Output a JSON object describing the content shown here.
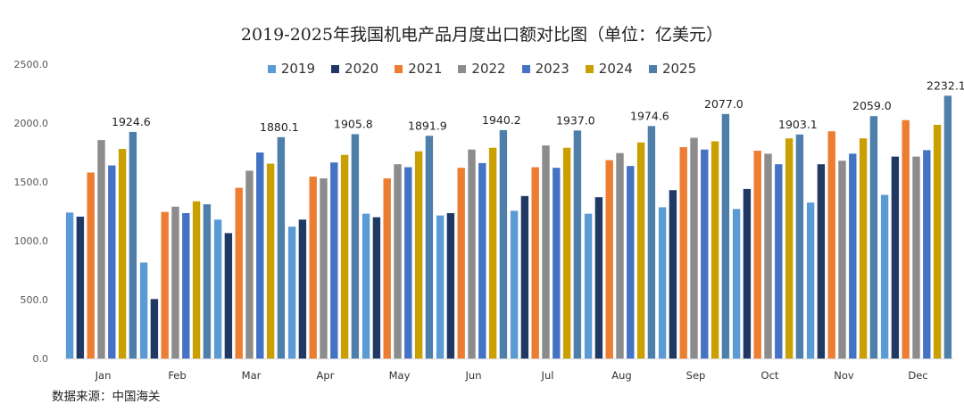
{
  "chart_data": {
    "type": "bar",
    "title": "2019-2025年我国机电产品月度出口额对比图（单位：亿美元）",
    "xlabel": "",
    "ylabel": "",
    "categories": [
      "Jan",
      "Feb",
      "Mar",
      "Apr",
      "May",
      "Jun",
      "Jul",
      "Aug",
      "Sep",
      "Oct",
      "Nov",
      "Dec"
    ],
    "ylim": [
      0,
      2500
    ],
    "yticks": [
      "0.0",
      "500.0",
      "1000.0",
      "1500.0",
      "2000.0",
      "2500.0"
    ],
    "grid": false,
    "legend_position": "top-center",
    "series": [
      {
        "name": "2019",
        "color": "#5b9bd5",
        "values": [
          1240,
          815,
          1180,
          1120,
          1230,
          1215,
          1255,
          1230,
          1285,
          1270,
          1325,
          1390
        ]
      },
      {
        "name": "2020",
        "color": "#1f3864",
        "values": [
          1205,
          505,
          1065,
          1180,
          1200,
          1235,
          1380,
          1370,
          1430,
          1440,
          1650,
          1715
        ]
      },
      {
        "name": "2021",
        "color": "#ed7d31",
        "values": [
          1580,
          1245,
          1450,
          1545,
          1530,
          1620,
          1625,
          1685,
          1795,
          1765,
          1930,
          2025
        ]
      },
      {
        "name": "2022",
        "color": "#8c8c8c",
        "values": [
          1855,
          1290,
          1595,
          1530,
          1650,
          1775,
          1810,
          1745,
          1875,
          1740,
          1680,
          1715
        ]
      },
      {
        "name": "2023",
        "color": "#4472c4",
        "values": [
          1640,
          1235,
          1750,
          1665,
          1625,
          1660,
          1620,
          1635,
          1775,
          1650,
          1740,
          1770
        ]
      },
      {
        "name": "2024",
        "color": "#c9a000",
        "values": [
          1780,
          1335,
          1655,
          1730,
          1760,
          1790,
          1790,
          1835,
          1845,
          1870,
          1870,
          1985
        ]
      },
      {
        "name": "2025",
        "color": "#4e7fab",
        "values": [
          1924.6,
          1310,
          1880.1,
          1905.8,
          1891.9,
          1940.2,
          1937.0,
          1974.6,
          2077.0,
          1903.1,
          2059.0,
          2232.1
        ]
      }
    ],
    "data_labels": {
      "series": "2025",
      "labels": [
        "1924.6",
        null,
        "1880.1",
        "1905.8",
        "1891.9",
        "1940.2",
        "1937.0",
        "1974.6",
        "2077.0",
        "1903.1",
        "2059.0",
        "2232.1"
      ]
    }
  },
  "source": "数据来源：中国海关"
}
